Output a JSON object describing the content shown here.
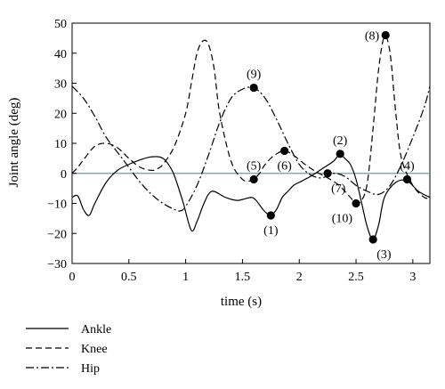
{
  "chart_data": {
    "type": "line",
    "xlabel": "time (s)",
    "ylabel": "Joint angle (deg)",
    "xlim": [
      0,
      3.15
    ],
    "ylim": [
      -30,
      50
    ],
    "xticks": [
      0,
      0.5,
      1,
      1.5,
      2,
      2.5,
      3
    ],
    "yticks": [
      -30,
      -20,
      -10,
      0,
      10,
      20,
      30,
      40,
      50
    ],
    "xtick_labels": [
      "0",
      "0.5",
      "1",
      "1.5",
      "2",
      "2.5",
      "3"
    ],
    "ytick_labels": [
      "−30",
      "−20",
      "−10",
      "0",
      "10",
      "20",
      "30",
      "40",
      "50"
    ],
    "zero_line": true,
    "grid": false,
    "legend_position": "below",
    "series": [
      {
        "name": "Ankle",
        "style": "solid",
        "x": [
          0,
          0.05,
          0.1,
          0.15,
          0.2,
          0.3,
          0.4,
          0.5,
          0.6,
          0.7,
          0.8,
          0.88,
          0.93,
          0.98,
          1.05,
          1.1,
          1.15,
          1.2,
          1.25,
          1.35,
          1.45,
          1.52,
          1.58,
          1.62,
          1.68,
          1.72,
          1.75,
          1.8,
          1.85,
          1.9,
          1.95,
          2.0,
          2.05,
          2.1,
          2.2,
          2.3,
          2.36,
          2.4,
          2.45,
          2.5,
          2.55,
          2.6,
          2.65,
          2.7,
          2.75,
          2.85,
          2.95,
          3.05,
          3.15
        ],
        "y": [
          -8,
          -7.5,
          -12,
          -14,
          -10,
          -3,
          1,
          3,
          4.5,
          5.5,
          5,
          1,
          -4,
          -10,
          -19,
          -16,
          -11,
          -7,
          -6,
          -8,
          -9,
          -8.5,
          -8,
          -9,
          -12,
          -13.5,
          -14,
          -12,
          -8,
          -6,
          -4,
          -3,
          -2,
          -1,
          1.5,
          4,
          6.5,
          5,
          3,
          -2,
          -10,
          -18,
          -22,
          -17,
          -8,
          -3,
          -2.5,
          -6,
          -8
        ]
      },
      {
        "name": "Knee",
        "style": "dashed",
        "x": [
          0,
          0.05,
          0.1,
          0.2,
          0.3,
          0.4,
          0.5,
          0.6,
          0.7,
          0.75,
          0.8,
          0.9,
          1.0,
          1.05,
          1.1,
          1.15,
          1.2,
          1.25,
          1.3,
          1.4,
          1.5,
          1.57,
          1.6,
          1.65,
          1.7,
          1.78,
          1.87,
          1.95,
          2.05,
          2.15,
          2.25,
          2.35,
          2.45,
          2.5,
          2.55,
          2.6,
          2.65,
          2.7,
          2.75,
          2.8,
          2.85,
          2.9,
          3.0,
          3.1,
          3.15
        ],
        "y": [
          0,
          2,
          4.5,
          9,
          10,
          8.5,
          5,
          2,
          1,
          1.5,
          3,
          9,
          20,
          30,
          40,
          44,
          43,
          35,
          20,
          4,
          -2,
          -2.5,
          -2,
          0,
          3,
          6,
          7.5,
          6,
          3,
          0.5,
          -1.5,
          -4,
          -8,
          -10,
          -9,
          -3,
          15,
          35,
          45.5,
          40,
          20,
          5,
          -4,
          -8,
          -8
        ]
      },
      {
        "name": "Hip",
        "style": "dashdot",
        "x": [
          0,
          0.1,
          0.2,
          0.3,
          0.4,
          0.5,
          0.6,
          0.7,
          0.8,
          0.9,
          0.95,
          1.0,
          1.1,
          1.2,
          1.3,
          1.4,
          1.5,
          1.6,
          1.7,
          1.8,
          1.9,
          2.0,
          2.1,
          2.2,
          2.3,
          2.4,
          2.5,
          2.6,
          2.7,
          2.8,
          2.9,
          3.0,
          3.1,
          3.15
        ],
        "y": [
          29,
          25,
          19,
          12,
          7,
          2,
          -3,
          -7,
          -10,
          -12,
          -12.5,
          -11,
          -4,
          6,
          17,
          25,
          28,
          28.5,
          25,
          18,
          10,
          3,
          -0.5,
          -1.5,
          0,
          -1,
          -4,
          -6,
          -7,
          -4,
          3,
          12,
          22,
          29
        ]
      }
    ],
    "annotations": [
      {
        "label": "(1)",
        "x": 1.75,
        "y": -14,
        "pos": "below"
      },
      {
        "label": "(2)",
        "x": 2.36,
        "y": 6.5,
        "pos": "above"
      },
      {
        "label": "(3)",
        "x": 2.65,
        "y": -22,
        "pos": "below-right"
      },
      {
        "label": "(4)",
        "x": 2.95,
        "y": -2,
        "pos": "above"
      },
      {
        "label": "(5)",
        "x": 1.6,
        "y": -2,
        "pos": "above"
      },
      {
        "label": "(6)",
        "x": 1.87,
        "y": 7.5,
        "pos": "below"
      },
      {
        "label": "(7)",
        "x": 2.25,
        "y": 0,
        "pos": "below-right"
      },
      {
        "label": "(8)",
        "x": 2.76,
        "y": 46,
        "pos": "left"
      },
      {
        "label": "(9)",
        "x": 1.6,
        "y": 28.5,
        "pos": "above"
      },
      {
        "label": "(10)",
        "x": 2.5,
        "y": -10,
        "pos": "below-left"
      }
    ]
  }
}
